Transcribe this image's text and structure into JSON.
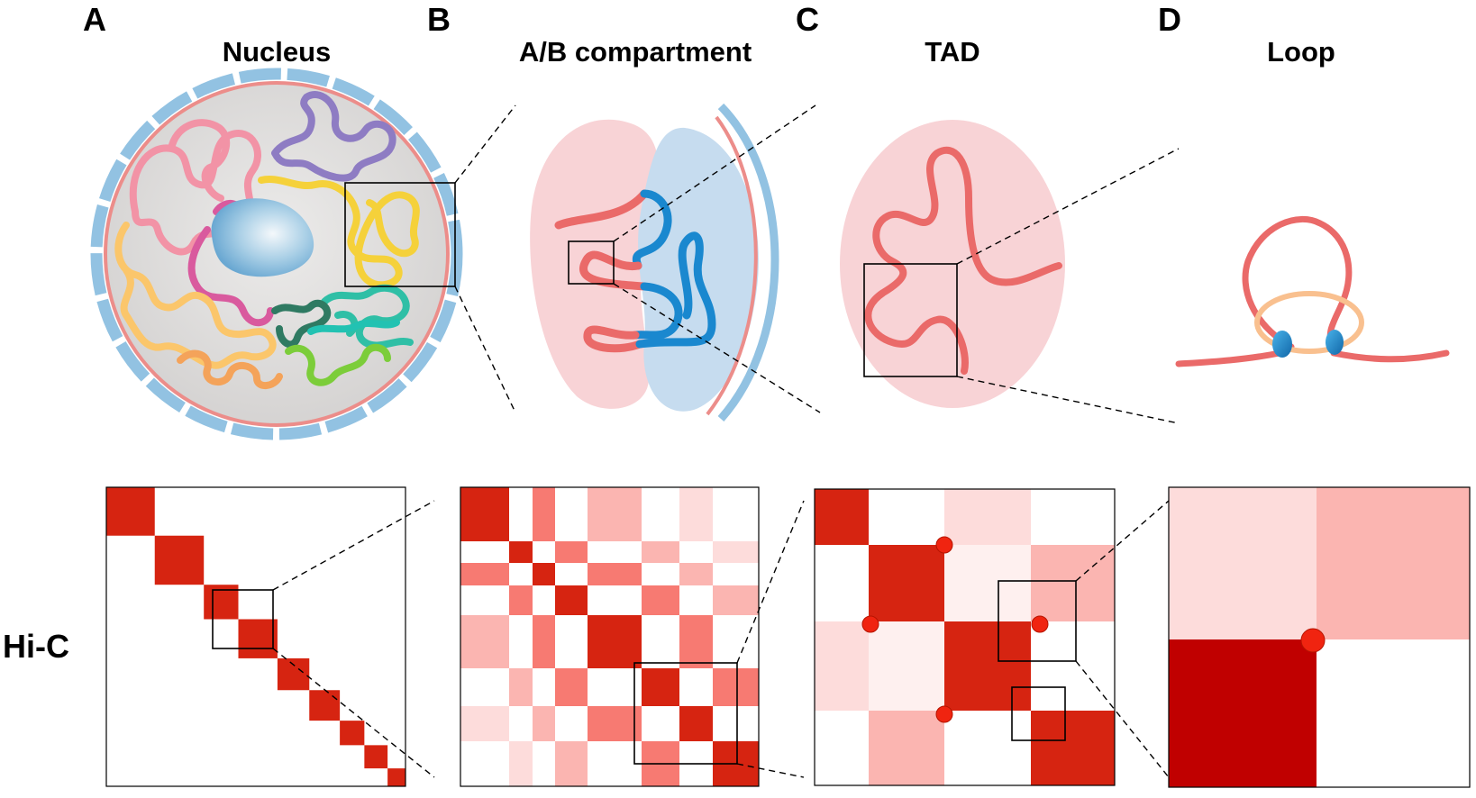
{
  "panels": [
    {
      "letter": "A",
      "title": "Nucleus"
    },
    {
      "letter": "B",
      "title": "A/B compartment"
    },
    {
      "letter": "C",
      "title": "TAD"
    },
    {
      "letter": "D",
      "title": "Loop"
    }
  ],
  "row_label": "Hi-C",
  "colors": {
    "dark_red": "#d62411",
    "deep_red": "#c00000",
    "medium_red": "#f77a72",
    "light_red": "#fbb5b1",
    "pale_red": "#fddcdb",
    "very_pale_red": "#fef0ef",
    "compartment_a": "#f8d3d6",
    "compartment_b": "#c6dcef",
    "chromatin_red": "#ea6a69",
    "chromatin_blue": "#1a88cf",
    "nuclear_membrane": "#92c2e2",
    "nucleolus": "#8fc1de",
    "cohesin_ring": "#f9c08f"
  }
}
